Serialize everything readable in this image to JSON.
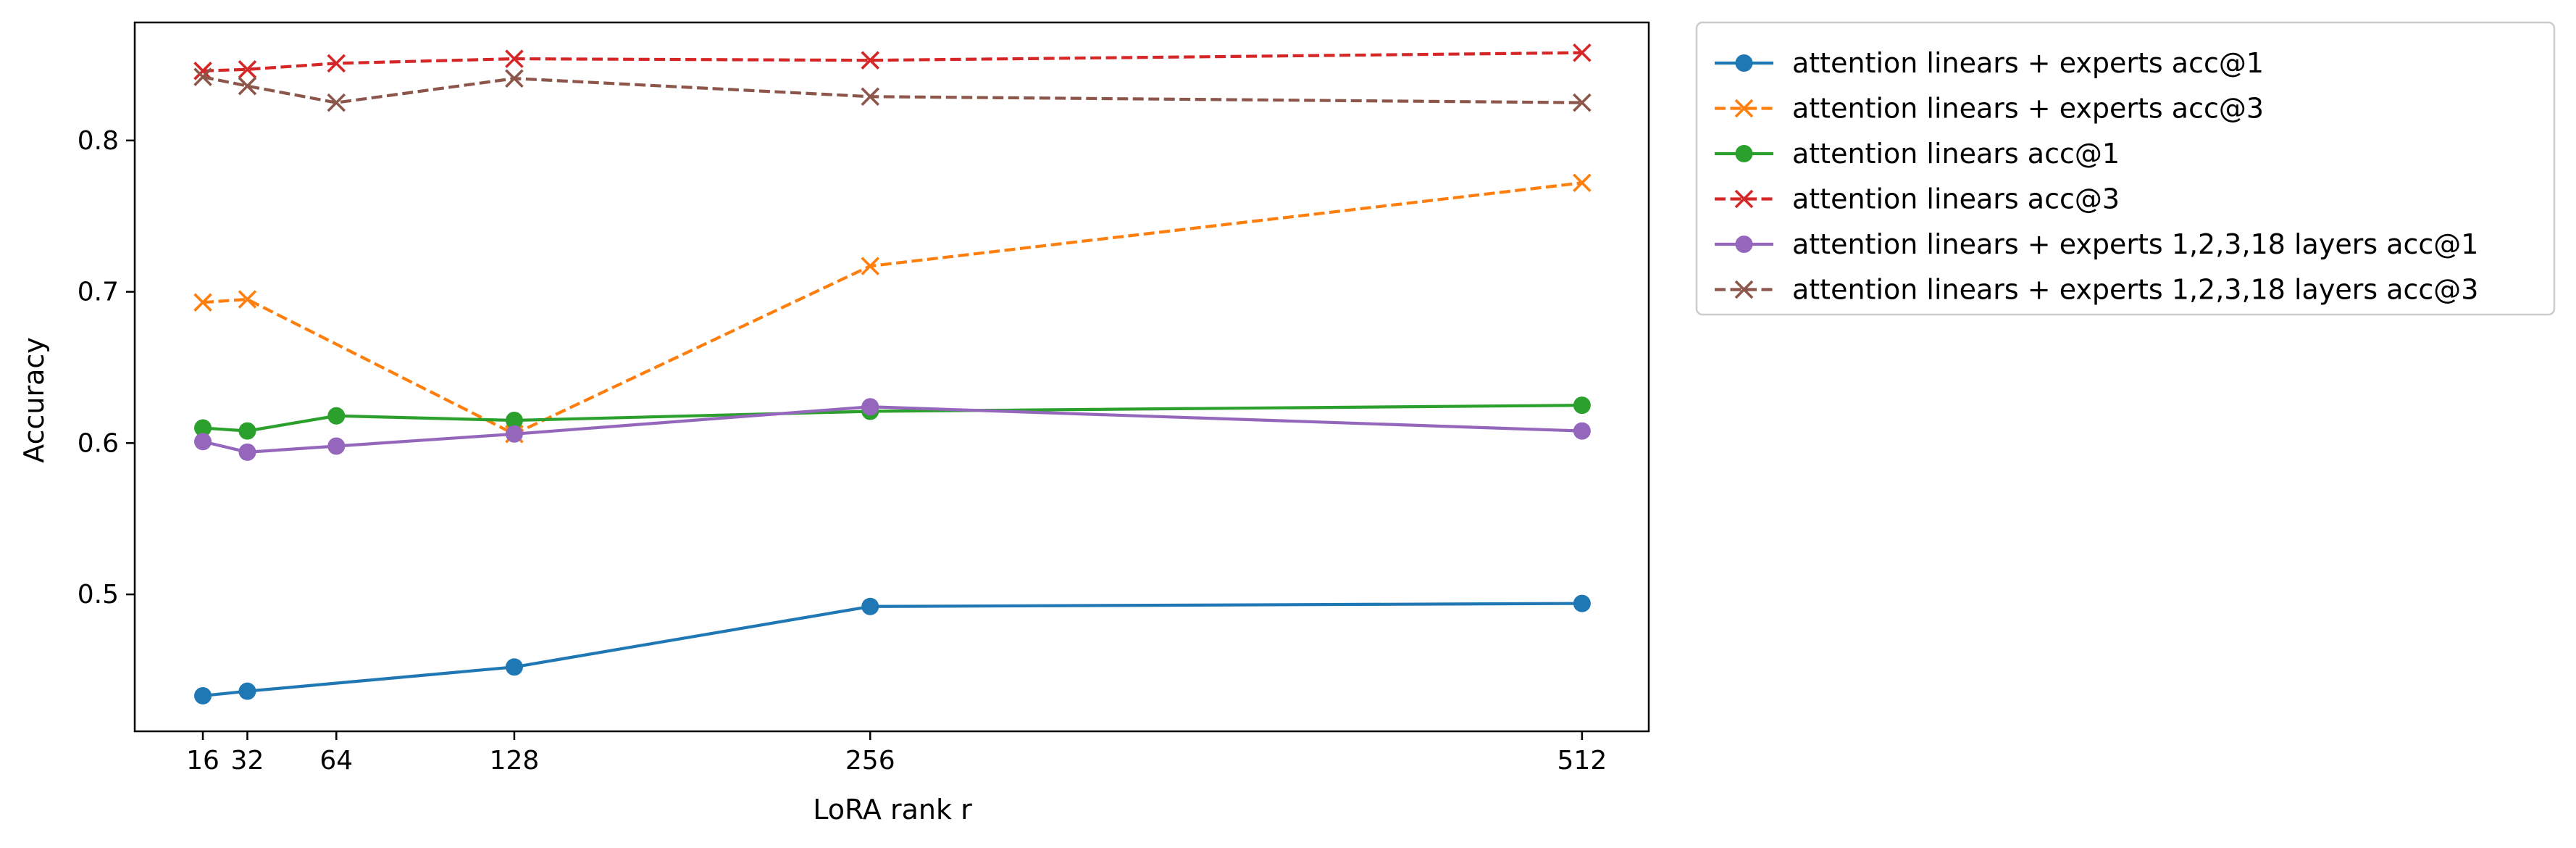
{
  "chart_data": {
    "type": "line",
    "title": "",
    "xlabel": "LoRA rank r",
    "ylabel": "Accuracy",
    "x": [
      16,
      32,
      64,
      128,
      256,
      512
    ],
    "xticks": [
      16,
      32,
      64,
      128,
      256,
      512
    ],
    "yticks": [
      0.5,
      0.6,
      0.7,
      0.8
    ],
    "xlim": [
      -8.5,
      536
    ],
    "ylim": [
      0.4095,
      0.878
    ],
    "grid": false,
    "legend_position": "outside-top-right",
    "series": [
      {
        "name": "attention linears + experts acc@1",
        "values": [
          0.433,
          0.436,
          null,
          0.452,
          0.492,
          0.494
        ],
        "color": "#1f77b4",
        "style": "solid",
        "marker": "circle"
      },
      {
        "name": "attention linears + experts acc@3",
        "values": [
          0.693,
          0.695,
          null,
          0.606,
          0.717,
          0.772
        ],
        "color": "#ff7f0e",
        "style": "dashed",
        "marker": "x"
      },
      {
        "name": "attention linears acc@1",
        "values": [
          0.61,
          0.608,
          0.618,
          0.615,
          0.621,
          0.625
        ],
        "color": "#2ca02c",
        "style": "solid",
        "marker": "circle"
      },
      {
        "name": "attention linears acc@3",
        "values": [
          0.846,
          0.847,
          0.851,
          0.854,
          0.853,
          0.858
        ],
        "color": "#d62728",
        "style": "dashed",
        "marker": "x"
      },
      {
        "name": "attention linears + experts 1,2,3,18 layers acc@1",
        "values": [
          0.601,
          0.594,
          0.598,
          0.606,
          0.624,
          0.608
        ],
        "color": "#9467bd",
        "style": "solid",
        "marker": "circle"
      },
      {
        "name": "attention linears + experts 1,2,3,18 layers acc@3",
        "values": [
          0.842,
          0.836,
          0.825,
          0.841,
          0.829,
          0.825
        ],
        "color": "#8c564b",
        "style": "dashed",
        "marker": "x"
      }
    ]
  }
}
